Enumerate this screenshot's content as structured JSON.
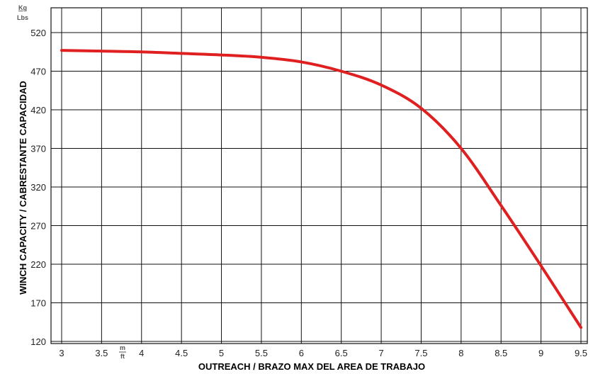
{
  "chart_data": {
    "type": "line",
    "title": "",
    "xlabel": "OUTREACH / BRAZO MAX DEL AREA DE TRABAJO",
    "ylabel": "WINCH CAPACITY / CABRESTANTE CAPACIDAD",
    "x_unit_top": "m",
    "x_unit_bottom": "ft",
    "y_unit_top": "Kg",
    "y_unit_bottom": "Lbs",
    "xlim": [
      3,
      9.5
    ],
    "ylim": [
      120,
      520
    ],
    "x_ticks": [
      "3",
      "3.5",
      "4",
      "4.5",
      "5",
      "5.5",
      "6",
      "6.5",
      "7",
      "7.5",
      "8",
      "8.5",
      "9",
      "9.5"
    ],
    "y_ticks": [
      "520",
      "470",
      "420",
      "370",
      "320",
      "270",
      "220",
      "170",
      "120"
    ],
    "grid": true,
    "line_color": "#e02020",
    "series": [
      {
        "x": [
          3.0,
          3.5,
          4.0,
          4.5,
          5.0,
          5.5,
          6.0,
          6.5,
          7.0,
          7.5,
          8.0,
          8.5,
          9.0,
          9.5
        ],
        "y": [
          497,
          496,
          495,
          493,
          491,
          488,
          482,
          470,
          452,
          422,
          370,
          296,
          218,
          138
        ]
      }
    ]
  }
}
